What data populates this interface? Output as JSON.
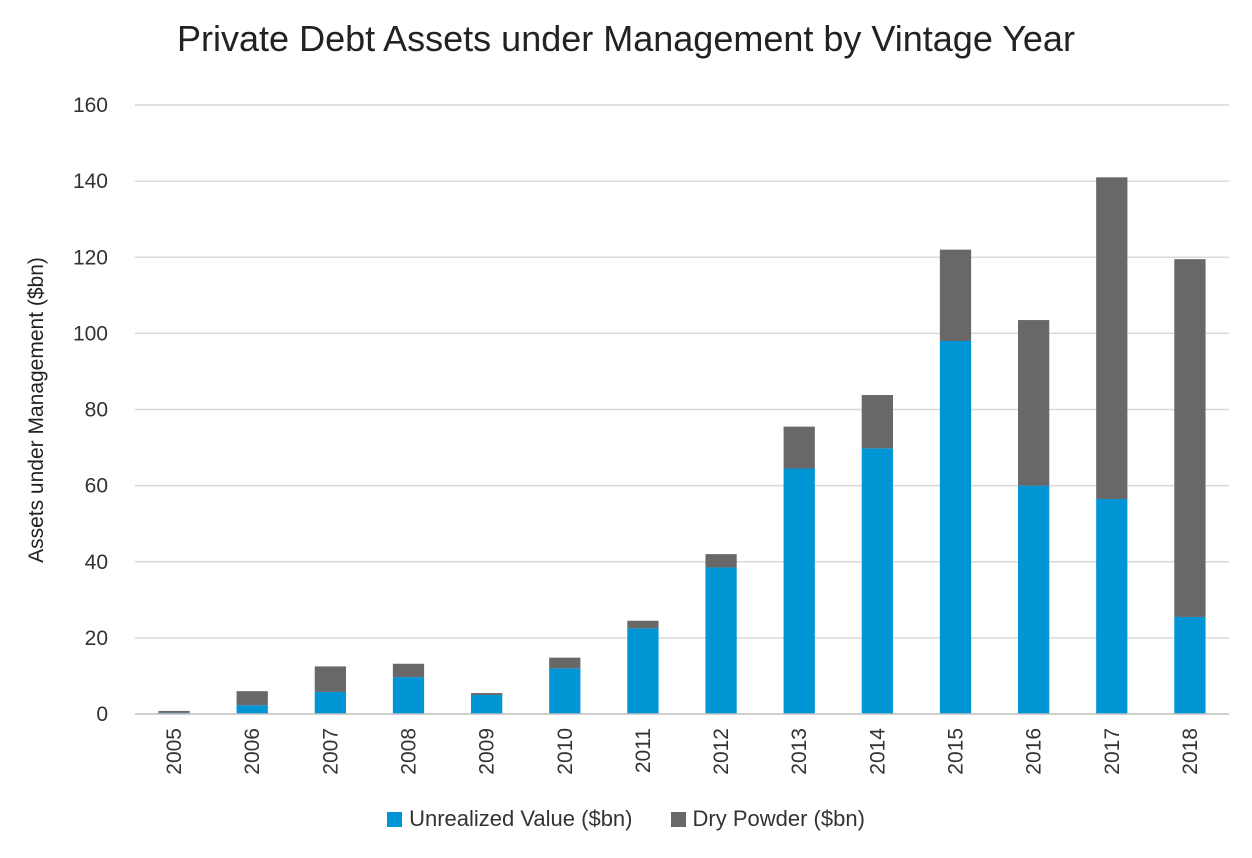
{
  "colors": {
    "unrealized": "#0096D6",
    "dry_powder": "#696767",
    "grid": "#D9D9D9",
    "axis": "#BFBFBF"
  },
  "chart_data": {
    "type": "bar",
    "stacked": true,
    "title": "Private Debt Assets under Management by Vintage Year",
    "xlabel": "",
    "ylabel": "Assets under Management ($bn)",
    "ylim": [
      0,
      160
    ],
    "yticks": [
      0,
      20,
      40,
      60,
      80,
      100,
      120,
      140,
      160
    ],
    "grid": true,
    "legend_position": "bottom",
    "categories": [
      "2005",
      "2006",
      "2007",
      "2008",
      "2009",
      "2010",
      "2011",
      "2012",
      "2013",
      "2014",
      "2015",
      "2016",
      "2017",
      "2018"
    ],
    "series": [
      {
        "name": "Unrealized Value ($bn)",
        "values": [
          0.3,
          2.3,
          5.8,
          9.7,
          5,
          12,
          22.5,
          38.5,
          64.5,
          69.8,
          98,
          60,
          56.5,
          25.5
        ]
      },
      {
        "name": "Dry Powder ($bn)",
        "values": [
          0.5,
          3.7,
          6.7,
          3.5,
          0.5,
          2.8,
          2,
          3.5,
          11,
          14,
          24,
          43.5,
          84.5,
          94
        ]
      }
    ]
  }
}
